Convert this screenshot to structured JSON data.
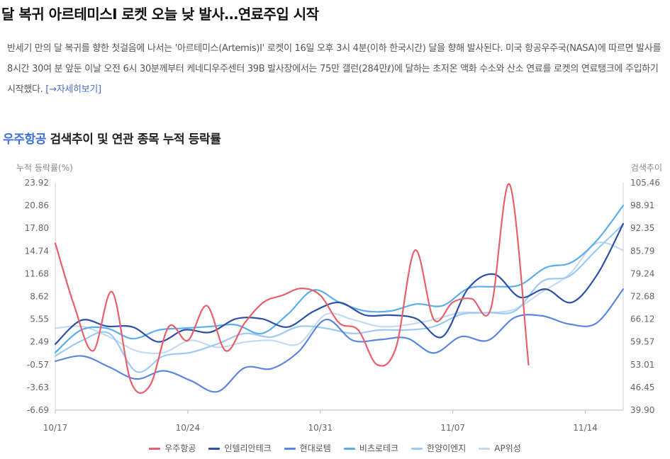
{
  "headline": "달 복귀 아르테미스Ⅰ 로켓 오늘 낮 발사…연료주입 시작",
  "article": {
    "body": "반세기 만의 달 복귀를 향한 첫걸음에 나서는 '아르테미스(Artemis)Ⅰ' 로켓이 16일 오후 3시 4분(이하 한국시간) 달을 향해 발사된다. 미국 항공우주국(NASA)에 따르면 발사를 8시간 30여 분 앞둔 이날 오전 6시 30분께부터 케네디우주센터 39B 발사장에서는 75만 갤런(284만ℓ)에 달하는 초저온 액화 수소와 산소 연료를 로켓의 연료탱크에 주입하기 시작했다.",
    "more_link": "[→자세히보기]"
  },
  "section": {
    "accent": "우주항공",
    "rest": " 검색추이 및 연관 종목 누적 등락률"
  },
  "chart_data": {
    "type": "line",
    "left_axis_title": "누적 등락률(%)",
    "right_axis_title": "검색추이",
    "left_ticks": [
      "23.92",
      "20.86",
      "17.80",
      "14.74",
      "11.68",
      "8.62",
      "5.55",
      "2.49",
      "-0.57",
      "-3.63",
      "-6.69"
    ],
    "right_ticks": [
      "105.46",
      "98.91",
      "92.35",
      "85.79",
      "79.24",
      "72.68",
      "66.12",
      "59.57",
      "53.01",
      "46.45",
      "39.90"
    ],
    "ylim_left": [
      -6.69,
      23.92
    ],
    "ylim_right": [
      39.9,
      105.46
    ],
    "x_ticks": [
      "10/17",
      "10/24",
      "10/31",
      "11/07",
      "11/14"
    ],
    "x_tick_index": [
      0,
      7,
      14,
      21,
      28
    ],
    "n_points": 31,
    "grid": false,
    "legend_position": "bottom",
    "series": [
      {
        "name": "우주항공",
        "axis": "right",
        "color": "#e8606a",
        "points": [
          [
            0,
            88
          ],
          [
            1,
            70
          ],
          [
            2,
            57
          ],
          [
            3,
            74
          ],
          [
            4,
            48
          ],
          [
            5,
            47
          ],
          [
            6,
            64
          ],
          [
            7,
            60
          ],
          [
            8,
            70
          ],
          [
            9,
            57
          ],
          [
            10,
            65
          ],
          [
            11,
            71
          ],
          [
            12,
            73
          ],
          [
            13,
            75
          ],
          [
            14,
            73
          ],
          [
            15,
            65
          ],
          [
            16,
            63
          ],
          [
            17,
            53
          ],
          [
            18,
            58
          ],
          [
            19,
            86
          ],
          [
            20,
            66
          ],
          [
            21,
            71
          ],
          [
            22,
            72
          ],
          [
            23,
            69
          ],
          [
            24,
            105
          ],
          [
            25,
            53
          ]
        ]
      },
      {
        "name": "인텔리안테크",
        "axis": "left",
        "color": "#2c4fa8",
        "values": [
          2.2,
          5.4,
          4.6,
          4.5,
          2.5,
          4.1,
          3.8,
          5.6,
          5.6,
          4.5,
          6.6,
          7.8,
          6.1,
          6.1,
          5.6,
          3.2,
          9.7,
          11.6,
          8.5,
          9.6,
          7.8,
          11.6,
          18.4
        ]
      },
      {
        "name": "현대로템",
        "axis": "left",
        "color": "#5b86e0",
        "values": [
          -0.1,
          0.6,
          -0.9,
          -2.5,
          -1.4,
          -2.7,
          -4.2,
          -1.0,
          -1.1,
          1.2,
          5.5,
          2.7,
          2.8,
          3.0,
          1.0,
          3.2,
          2.7,
          5.8,
          6.0,
          4.9,
          5.0,
          9.6
        ]
      },
      {
        "name": "비츠로테크",
        "axis": "right",
        "color": "#5aaeee",
        "values": [
          56.5,
          63,
          63.5,
          60.5,
          63,
          63.5,
          64,
          64.5,
          62,
          67.5,
          74.5,
          71,
          68.5,
          68.5,
          70.5,
          70,
          75,
          75.5,
          76,
          81,
          82.5,
          89,
          98.9
        ]
      },
      {
        "name": "한양이엔지",
        "axis": "right",
        "color": "#9ccaf5",
        "values": [
          55.5,
          60,
          62,
          51,
          55.5,
          56.5,
          59,
          62,
          61,
          64,
          63.5,
          62,
          63,
          63,
          64,
          67.5,
          68,
          68.5,
          77,
          78.5,
          86,
          93.5
        ]
      },
      {
        "name": "AP위성",
        "axis": "right",
        "color": "#c5daf2",
        "values": [
          63.5,
          64,
          61,
          57,
          56.5,
          60,
          58,
          59.5,
          60,
          59,
          67.5,
          66,
          64,
          64.5,
          66,
          68,
          68,
          69,
          74,
          79,
          88,
          86
        ]
      }
    ]
  }
}
